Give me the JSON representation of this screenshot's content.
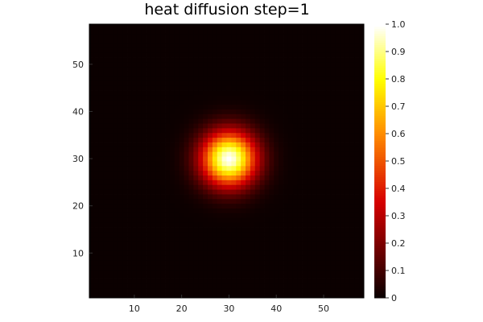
{
  "chart_data": {
    "type": "heatmap",
    "title": "heat diffusion step=1",
    "xlabel": "",
    "ylabel": "",
    "grid_size": 58,
    "x_range": [
      1,
      58
    ],
    "y_range": [
      1,
      58
    ],
    "x_ticks": [
      10,
      20,
      30,
      40,
      50
    ],
    "y_ticks": [
      10,
      20,
      30,
      40,
      50
    ],
    "colormap": "heat",
    "colorbar_range": [
      0,
      1
    ],
    "colorbar_ticks": [
      0,
      0.1,
      0.2,
      0.3,
      0.4,
      0.5,
      0.6,
      0.7,
      0.8,
      0.9,
      1.0
    ],
    "colorbar_tick_labels": [
      "0",
      "0.1",
      "0.2",
      "0.3",
      "0.4",
      "0.5",
      "0.6",
      "0.7",
      "0.8",
      "0.9",
      "1.0"
    ],
    "hotspot_center": [
      30,
      30
    ],
    "hotspot_peak": 1.0,
    "hotspot_sigma": 4,
    "background_value": 0,
    "colormap_stops": [
      {
        "v": 0.0,
        "color": "#0b0000"
      },
      {
        "v": 0.35,
        "color": "#d60000"
      },
      {
        "v": 0.6,
        "color": "#ff8c00"
      },
      {
        "v": 0.8,
        "color": "#ffff00"
      },
      {
        "v": 1.0,
        "color": "#ffffff"
      }
    ]
  }
}
